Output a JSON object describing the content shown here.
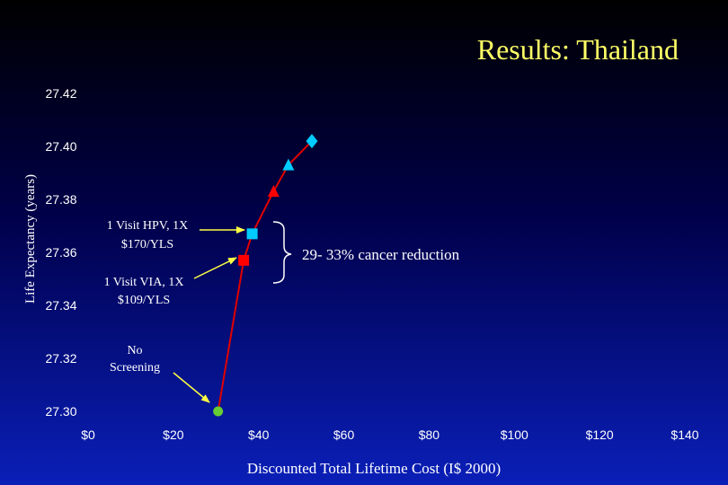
{
  "chart_data": {
    "type": "line",
    "title": "Results: Thailand",
    "xlabel": "Discounted Total Lifetime Cost (I$ 2000)",
    "ylabel": "Life Expectancy (years)",
    "xlim": [
      0,
      140
    ],
    "ylim": [
      27.3,
      27.42
    ],
    "x_ticks": [
      "$0",
      "$20",
      "$40",
      "$60",
      "$80",
      "$100",
      "$120",
      "$140"
    ],
    "y_ticks": [
      "27.42",
      "27.40",
      "27.38",
      "27.36",
      "27.34",
      "27.32",
      "27.30"
    ],
    "grid": false,
    "legend": "none",
    "line_color": "#e00000",
    "points": [
      {
        "x": 30.5,
        "y": 27.3,
        "marker": "circle",
        "color": "#66cc33"
      },
      {
        "x": 36.5,
        "y": 27.357,
        "marker": "square",
        "color": "#ff0000"
      },
      {
        "x": 38.5,
        "y": 27.367,
        "marker": "square",
        "color": "#00ccff"
      },
      {
        "x": 43.5,
        "y": 27.383,
        "marker": "triangle",
        "color": "#ff0000"
      },
      {
        "x": 47.0,
        "y": 27.393,
        "marker": "triangle",
        "color": "#00ccff"
      },
      {
        "x": 52.5,
        "y": 27.402,
        "marker": "diamond",
        "color": "#00ccff"
      }
    ],
    "annotations": {
      "hpv": [
        "1 Visit HPV, 1X",
        "$170/YLS"
      ],
      "via": [
        "1 Visit VIA, 1X",
        "$109/YLS"
      ],
      "none": [
        "No",
        "Screening"
      ],
      "reduction": "29- 33% cancer reduction"
    }
  }
}
